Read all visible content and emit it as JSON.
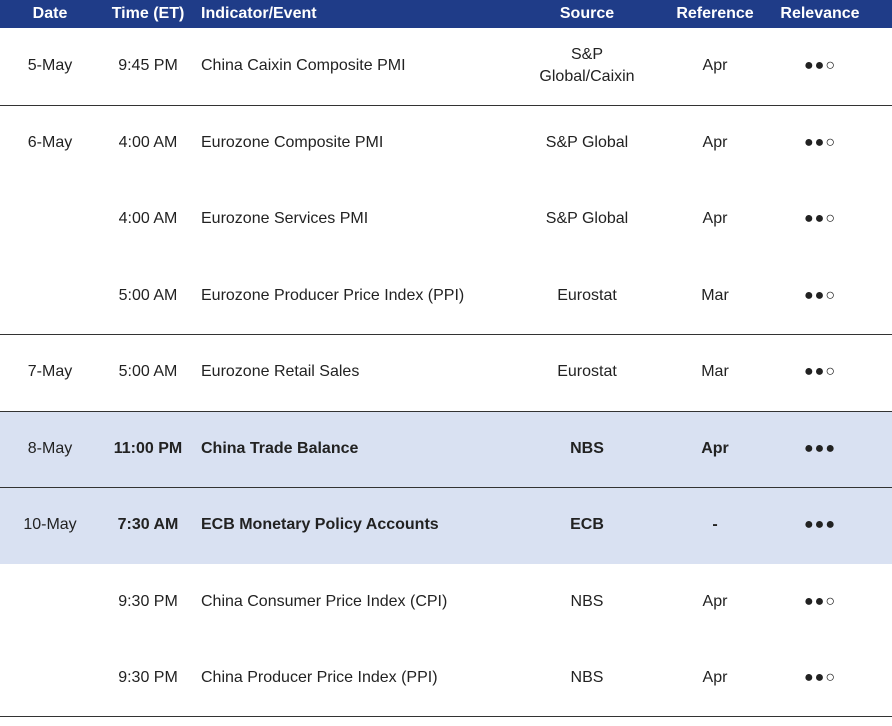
{
  "table": {
    "header": [
      "Date",
      "Time (ET)",
      "Indicator/Event",
      "Source",
      "Reference",
      "Relevance"
    ],
    "rows": [
      {
        "date": "5-May",
        "time": "9:45 PM",
        "event": "China Caixin Composite PMI",
        "source": "S&P Global/Caixin",
        "reference": "Apr",
        "relevance": "●●○"
      },
      {
        "date": "6-May",
        "time": "4:00 AM",
        "event": "Eurozone Composite PMI",
        "source": "S&P Global",
        "reference": "Apr",
        "relevance": "●●○"
      },
      {
        "time": "4:00 AM",
        "event": "Eurozone Services PMI",
        "source": "S&P Global",
        "reference": "Apr",
        "relevance": "●●○"
      },
      {
        "time": "5:00 AM",
        "event": "Eurozone Producer Price Index (PPI)",
        "source": "Eurostat",
        "reference": "Mar",
        "relevance": "●●○"
      },
      {
        "date": "7-May",
        "time": "5:00 AM",
        "event": "Eurozone Retail Sales",
        "source": "Eurostat",
        "reference": "Mar",
        "relevance": "●●○"
      },
      {
        "date": "8-May",
        "time": "11:00 PM",
        "event": "China Trade Balance",
        "source": "NBS",
        "reference": "Apr",
        "relevance": "●●●",
        "highlight": true
      },
      {
        "date": "10-May",
        "time": "7:30 AM",
        "event": "ECB Monetary Policy Accounts",
        "source": "ECB",
        "reference": "-",
        "relevance": "●●●",
        "highlight": true
      },
      {
        "time": "9:30 PM",
        "event": "China Consumer Price Index (CPI)",
        "source": "NBS",
        "reference": "Apr",
        "relevance": "●●○"
      },
      {
        "time": "9:30 PM",
        "event": "China Producer Price Index (PPI)",
        "source": "NBS",
        "reference": "Apr",
        "relevance": "●●○"
      }
    ]
  }
}
